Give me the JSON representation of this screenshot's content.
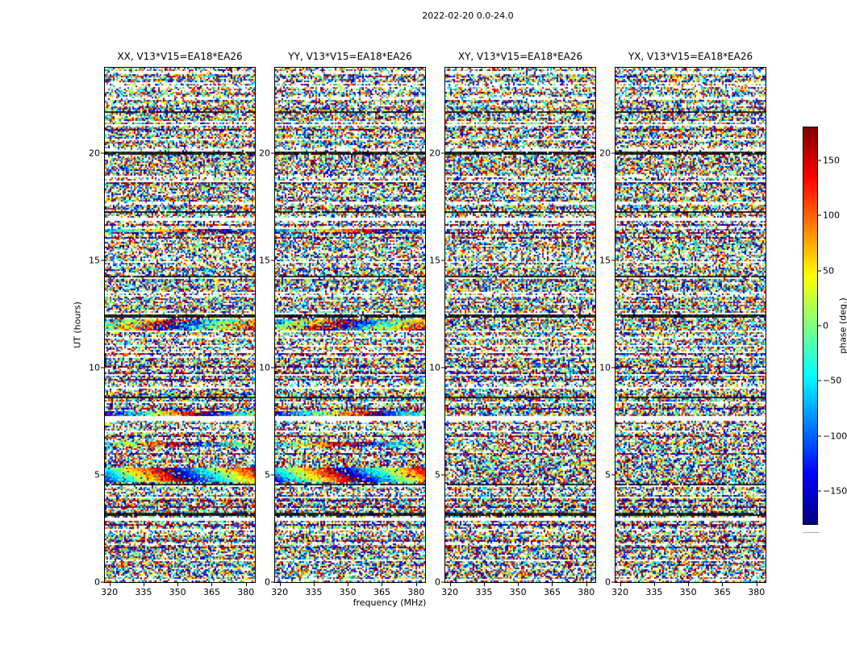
{
  "chart_data": {
    "type": "heatmap",
    "title": "2022-02-20 0.0-24.0",
    "content": "visibility phase vs frequency and time (waterfall), random phase noise with horizontal band structure",
    "panels": [
      {
        "title": "XX, V13*V15=EA18*EA26",
        "coherent": true
      },
      {
        "title": "YY, V13*V15=EA18*EA26",
        "coherent": true
      },
      {
        "title": "XY, V13*V15=EA18*EA26",
        "coherent": false
      },
      {
        "title": "YX, V13*V15=EA18*EA26",
        "coherent": false
      }
    ],
    "x": {
      "label": "frequency (MHz)",
      "ticks": [
        320,
        335,
        350,
        365,
        380
      ],
      "range": [
        318,
        384
      ]
    },
    "y": {
      "label": "UT (hours)",
      "ticks": [
        0,
        5,
        10,
        15,
        20
      ],
      "range": [
        0,
        24
      ]
    },
    "colorbar": {
      "label": "phase (deg.)",
      "ticks": [
        -150,
        -100,
        -50,
        0,
        50,
        100,
        150
      ],
      "range": [
        -180,
        180
      ],
      "colormap": "jet"
    },
    "seed": 20220220,
    "bands": {
      "gaps_ut": [
        [
          2.84,
          2.98
        ],
        [
          7.52,
          7.72
        ],
        [
          9.04,
          9.1
        ],
        [
          16.86,
          17.02
        ],
        [
          18.64,
          18.72
        ],
        [
          21.3,
          21.4
        ]
      ],
      "dark_ut": [
        [
          3.08,
          3.22
        ],
        [
          4.52,
          4.58
        ],
        [
          6.06,
          6.12
        ],
        [
          8.55,
          8.63
        ],
        [
          12.34,
          12.5
        ],
        [
          14.2,
          14.26
        ],
        [
          17.25,
          17.33
        ],
        [
          19.92,
          20.1
        ],
        [
          21.86,
          21.94
        ],
        [
          23.14,
          23.2
        ]
      ],
      "coherent": [
        {
          "ut": [
            4.68,
            5.35
          ],
          "sweep_deg": 560,
          "phase0_deg": -130,
          "noise_deg": 30,
          "mix": 0.12,
          "drift_deg_per_hour": 150
        },
        {
          "ut": [
            6.32,
            6.58
          ],
          "sweep_deg": 430,
          "phase0_deg": -40,
          "noise_deg": 50,
          "mix": 0.3,
          "drift_deg_per_hour": 0
        },
        {
          "ut": [
            7.78,
            8.0
          ],
          "sweep_deg": 520,
          "phase0_deg": -160,
          "noise_deg": 40,
          "mix": 0.2,
          "drift_deg_per_hour": 0
        },
        {
          "ut": [
            11.72,
            12.3
          ],
          "sweep_deg": 520,
          "phase0_deg": 20,
          "noise_deg": 60,
          "mix": 0.3,
          "drift_deg_per_hour": -200
        },
        {
          "ut": [
            16.3,
            16.46
          ],
          "sweep_deg": 380,
          "phase0_deg": -90,
          "noise_deg": 40,
          "mix": 0.2,
          "drift_deg_per_hour": 0
        }
      ]
    }
  }
}
